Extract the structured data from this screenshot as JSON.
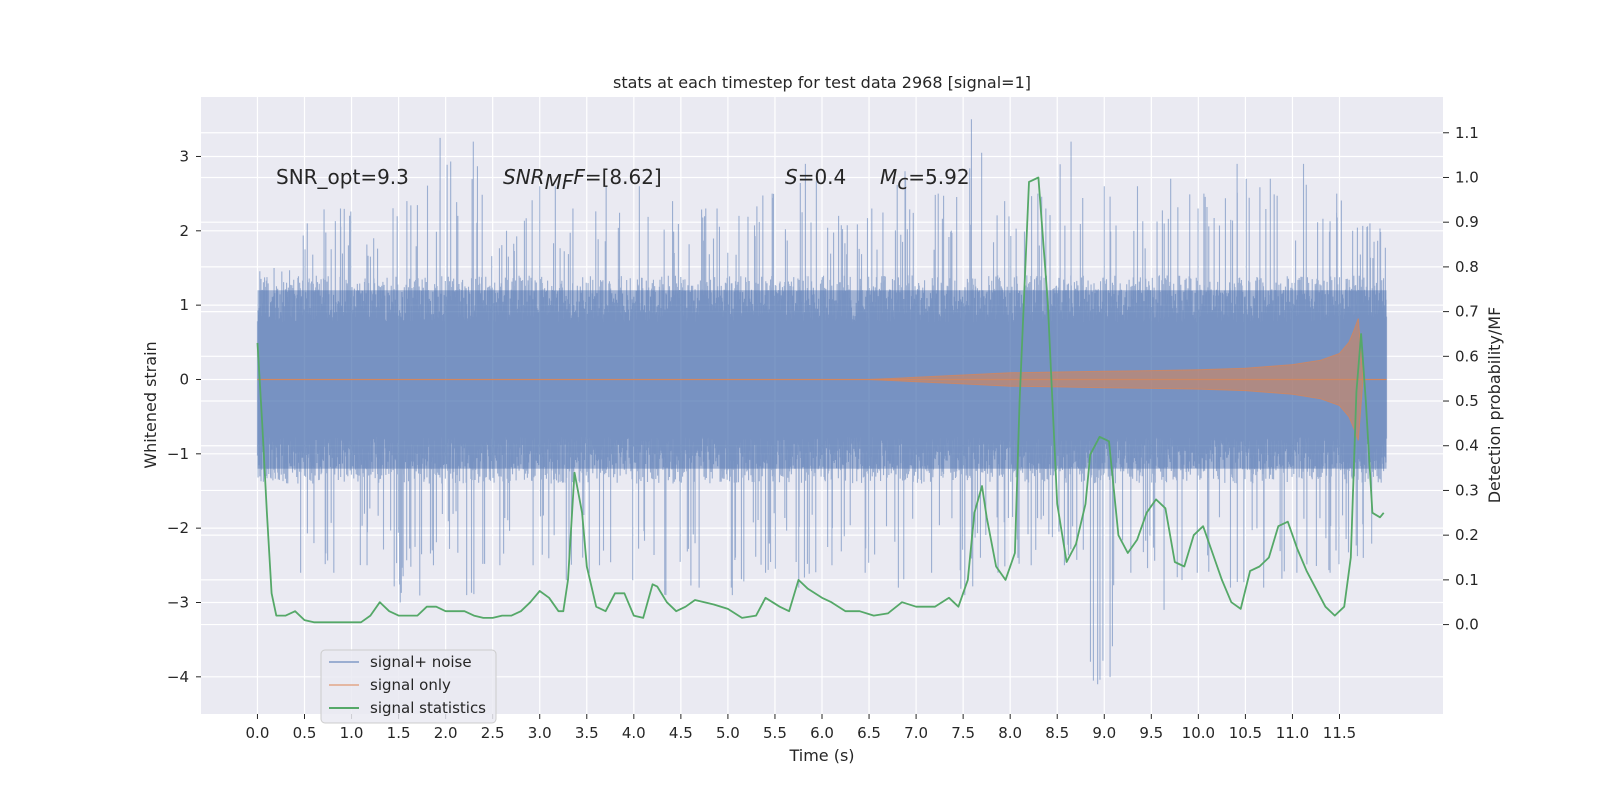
{
  "chart_data": {
    "type": "line",
    "title": "stats at each timestep for test data 2968 [signal=1]",
    "xlabel": "Time (s)",
    "ylabel_left": "Whitened strain",
    "ylabel_right": "Detection probability/MF",
    "xlim": [
      -0.6,
      12.6
    ],
    "ylim_left": [
      -4.5,
      3.8
    ],
    "ylim_right": [
      -0.2,
      1.18
    ],
    "x_ticks": [
      "0.0",
      "0.5",
      "1.0",
      "1.5",
      "2.0",
      "2.5",
      "3.0",
      "3.5",
      "4.0",
      "4.5",
      "5.0",
      "5.5",
      "6.0",
      "6.5",
      "7.0",
      "7.5",
      "8.0",
      "8.5",
      "9.0",
      "9.5",
      "10.0",
      "10.5",
      "11.0",
      "11.5"
    ],
    "y_ticks_left": [
      "3",
      "2",
      "1",
      "0",
      "−1",
      "−2",
      "−3",
      "−4"
    ],
    "y_ticks_right": [
      "1.1",
      "1.0",
      "0.9",
      "0.8",
      "0.7",
      "0.6",
      "0.5",
      "0.4",
      "0.3",
      "0.2",
      "0.1",
      "0.0"
    ],
    "grid": true,
    "annotations": {
      "snr_opt": "SNR_opt=9.3",
      "snr_mf_main": "SNR",
      "snr_mf_sub": "MF",
      "snr_mf_value": "=[8.62]",
      "s_symbol": "S",
      "s_value": "=0.4",
      "mc_main": "M",
      "mc_sub": "c",
      "mc_value": "=5.92"
    },
    "legend": {
      "placement": "lower-left",
      "entries": [
        "signal+ noise",
        "signal only",
        "signal statistics"
      ]
    },
    "series": [
      {
        "name": "signal+ noise",
        "axis": "left",
        "color": "#4c72b0",
        "kind": "noise-envelope",
        "time_range": [
          0.0,
          12.0
        ],
        "typical_upper": 1.4,
        "typical_lower": -1.4,
        "peak_upper": [
          1.5,
          2.1,
          2.3,
          1.9,
          2.4,
          3.25,
          3.2,
          2.0,
          2.6,
          2.3,
          2.6,
          2.6,
          2.4,
          2.3,
          2.2,
          2.5,
          2.9,
          2.2,
          2.3,
          2.8,
          2.5,
          3.5,
          2.4,
          2.5,
          3.2,
          2.6,
          2.6,
          2.7,
          2.5,
          2.9,
          2.7,
          2.9,
          2.5,
          2.1
        ],
        "peak_lower": [
          -1.2,
          -2.6,
          -2.6,
          -2.5,
          -3.0,
          -2.5,
          -2.9,
          -2.5,
          -2.5,
          -2.7,
          -2.5,
          -2.7,
          -2.9,
          -2.8,
          -2.9,
          -2.6,
          -2.8,
          -2.5,
          -2.6,
          -2.8,
          -2.6,
          -2.9,
          -2.6,
          -2.5,
          -2.5,
          -4.1,
          -2.6,
          -3.1,
          -2.6,
          -2.8,
          -2.8,
          -2.6,
          -2.6,
          -2.4
        ]
      },
      {
        "name": "signal only",
        "axis": "left",
        "color": "#dd8452",
        "kind": "chirp-envelope",
        "x": [
          0.0,
          6.5,
          7.0,
          7.5,
          8.0,
          8.5,
          9.0,
          9.5,
          10.0,
          10.5,
          11.0,
          11.3,
          11.5,
          11.6,
          11.65,
          11.7,
          11.75,
          12.0
        ],
        "amplitude": [
          0.0,
          0.0,
          0.03,
          0.06,
          0.09,
          0.1,
          0.11,
          0.12,
          0.13,
          0.15,
          0.2,
          0.26,
          0.35,
          0.5,
          0.65,
          0.82,
          0.0,
          0.0
        ]
      },
      {
        "name": "signal statistics",
        "axis": "right",
        "color": "#55a868",
        "x": [
          0.0,
          0.05,
          0.1,
          0.15,
          0.2,
          0.3,
          0.4,
          0.5,
          0.6,
          0.8,
          1.0,
          1.1,
          1.2,
          1.3,
          1.4,
          1.5,
          1.6,
          1.7,
          1.8,
          1.9,
          2.0,
          2.1,
          2.2,
          2.3,
          2.4,
          2.5,
          2.6,
          2.7,
          2.8,
          2.9,
          3.0,
          3.1,
          3.2,
          3.25,
          3.3,
          3.37,
          3.45,
          3.5,
          3.6,
          3.7,
          3.8,
          3.9,
          4.0,
          4.1,
          4.2,
          4.25,
          4.35,
          4.45,
          4.55,
          4.65,
          4.75,
          4.85,
          5.0,
          5.15,
          5.3,
          5.4,
          5.55,
          5.65,
          5.75,
          5.85,
          6.0,
          6.1,
          6.25,
          6.4,
          6.55,
          6.7,
          6.85,
          7.0,
          7.1,
          7.2,
          7.35,
          7.45,
          7.55,
          7.62,
          7.7,
          7.75,
          7.85,
          7.95,
          8.05,
          8.1,
          8.2,
          8.3,
          8.4,
          8.5,
          8.6,
          8.7,
          8.8,
          8.85,
          8.95,
          9.05,
          9.15,
          9.25,
          9.35,
          9.45,
          9.55,
          9.65,
          9.75,
          9.85,
          9.95,
          10.05,
          10.15,
          10.25,
          10.35,
          10.45,
          10.55,
          10.65,
          10.75,
          10.85,
          10.95,
          11.05,
          11.15,
          11.25,
          11.35,
          11.45,
          11.55,
          11.62,
          11.68,
          11.73,
          11.78,
          11.85,
          11.93,
          11.97
        ],
        "values": [
          0.63,
          0.45,
          0.25,
          0.07,
          0.02,
          0.02,
          0.03,
          0.01,
          0.005,
          0.005,
          0.005,
          0.005,
          0.02,
          0.05,
          0.03,
          0.02,
          0.02,
          0.02,
          0.04,
          0.04,
          0.03,
          0.03,
          0.03,
          0.02,
          0.015,
          0.015,
          0.02,
          0.02,
          0.03,
          0.05,
          0.075,
          0.06,
          0.03,
          0.03,
          0.1,
          0.34,
          0.25,
          0.13,
          0.04,
          0.03,
          0.07,
          0.07,
          0.02,
          0.015,
          0.09,
          0.085,
          0.05,
          0.03,
          0.04,
          0.055,
          0.05,
          0.045,
          0.035,
          0.015,
          0.02,
          0.06,
          0.04,
          0.03,
          0.1,
          0.08,
          0.06,
          0.05,
          0.03,
          0.03,
          0.02,
          0.025,
          0.05,
          0.04,
          0.04,
          0.04,
          0.06,
          0.04,
          0.1,
          0.25,
          0.31,
          0.24,
          0.13,
          0.1,
          0.16,
          0.5,
          0.99,
          1.0,
          0.72,
          0.27,
          0.14,
          0.18,
          0.27,
          0.38,
          0.42,
          0.41,
          0.2,
          0.16,
          0.19,
          0.25,
          0.28,
          0.26,
          0.14,
          0.13,
          0.2,
          0.22,
          0.16,
          0.1,
          0.05,
          0.035,
          0.12,
          0.13,
          0.15,
          0.22,
          0.23,
          0.17,
          0.12,
          0.08,
          0.04,
          0.02,
          0.04,
          0.15,
          0.52,
          0.65,
          0.5,
          0.25,
          0.24,
          0.25
        ]
      }
    ]
  }
}
